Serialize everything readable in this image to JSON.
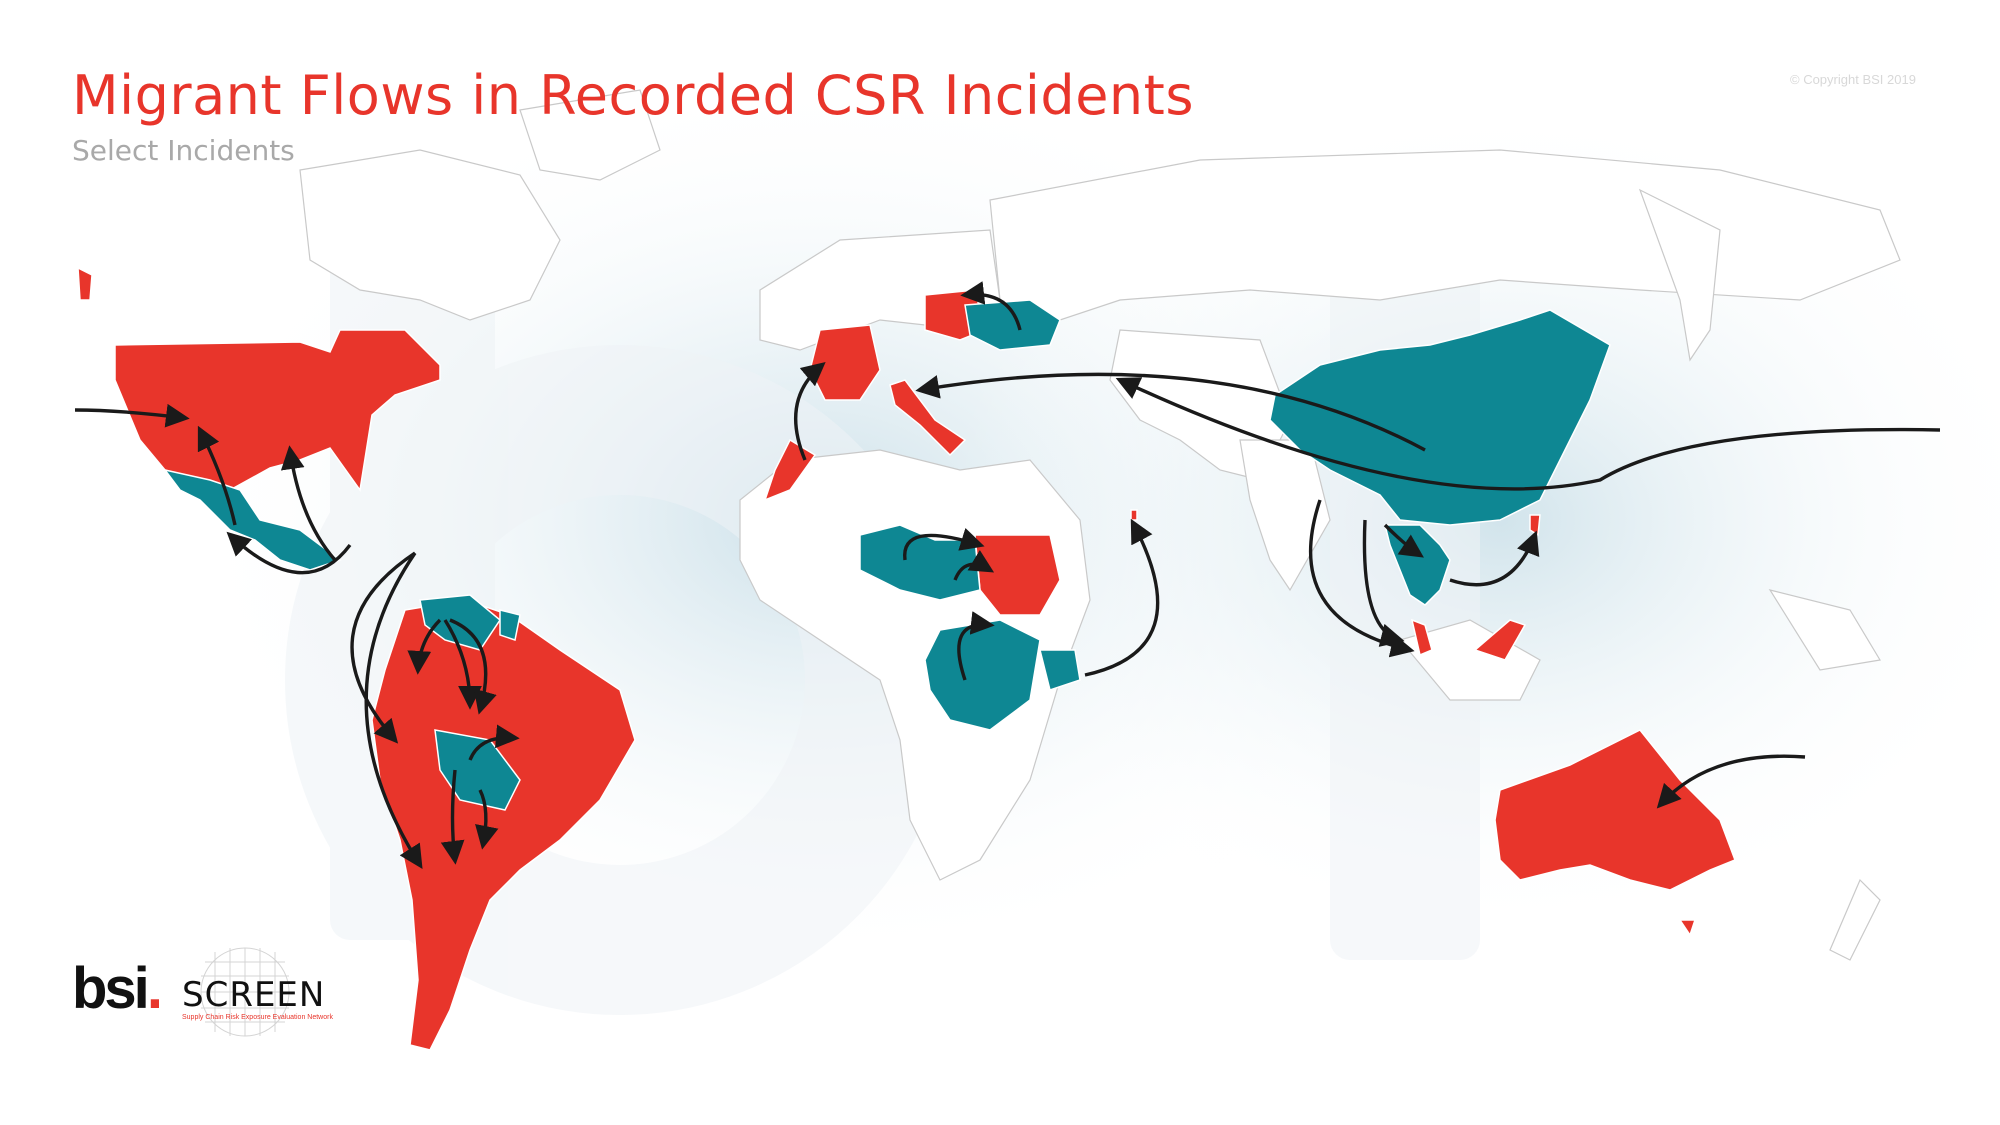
{
  "title": "Migrant Flows in Recorded CSR Incidents",
  "subtitle": "Select Incidents",
  "copyright": "© Copyright BSI 2019",
  "logo": {
    "bsi_text": "bsi",
    "bsi_dot": ".",
    "screen_text": "SCREEN",
    "screen_tagline": "Supply Chain Risk Exposure Evaluation Network"
  },
  "colors": {
    "destination": "#e8352b",
    "origin": "#0e8793",
    "both": "#7a4040",
    "land": "#ffffff",
    "border": "#c9c9c9",
    "arrow": "#1a1a1a",
    "glow": "#cfe3ec"
  },
  "map": {
    "projection": "world-equirectangular",
    "destination_countries": [
      "United States",
      "Venezuela",
      "Colombia",
      "Ecuador",
      "Peru",
      "Brazil",
      "Chile",
      "Argentina",
      "Uruguay",
      "France",
      "Italy",
      "Poland",
      "Morocco",
      "Sudan",
      "Qatar",
      "Thailand",
      "Malaysia",
      "Taiwan",
      "Australia"
    ],
    "origin_countries": [
      "Mexico",
      "Guatemala",
      "Honduras",
      "Bolivia",
      "Paraguay",
      "Guyana",
      "Ukraine",
      "Niger",
      "Chad",
      "Central African Republic",
      "Democratic Republic of the Congo",
      "Uganda",
      "Kenya",
      "China",
      "Myanmar",
      "Laos",
      "Cambodia"
    ],
    "flows": [
      {
        "from": "Pacific Ocean",
        "to": "United States"
      },
      {
        "from": "Mexico",
        "to": "United States"
      },
      {
        "from": "Central America",
        "to": "United States"
      },
      {
        "from": "Central America",
        "to": "Mexico"
      },
      {
        "from": "Central America",
        "to": "Colombia"
      },
      {
        "from": "Central America",
        "to": "Chile"
      },
      {
        "from": "Venezuela",
        "to": "Colombia"
      },
      {
        "from": "Venezuela",
        "to": "Peru"
      },
      {
        "from": "Venezuela",
        "to": "Brazil"
      },
      {
        "from": "Bolivia",
        "to": "Brazil"
      },
      {
        "from": "Bolivia",
        "to": "Argentina"
      },
      {
        "from": "Paraguay",
        "to": "Argentina"
      },
      {
        "from": "Morocco",
        "to": "France"
      },
      {
        "from": "Ukraine",
        "to": "Poland"
      },
      {
        "from": "China",
        "to": "Italy"
      },
      {
        "from": "Niger",
        "to": "Sudan"
      },
      {
        "from": "Chad",
        "to": "Sudan"
      },
      {
        "from": "Central African Republic",
        "to": "Sudan"
      },
      {
        "from": "Uganda",
        "to": "Sudan"
      },
      {
        "from": "Kenya",
        "to": "Qatar"
      },
      {
        "from": "Myanmar",
        "to": "Malaysia"
      },
      {
        "from": "Myanmar",
        "to": "Thailand"
      },
      {
        "from": "Cambodia",
        "to": "Thailand"
      },
      {
        "from": "Laos",
        "to": "Taiwan"
      },
      {
        "from": "Pacific Ocean",
        "to": "China"
      },
      {
        "from": "Pacific Ocean",
        "to": "Australia"
      }
    ]
  }
}
